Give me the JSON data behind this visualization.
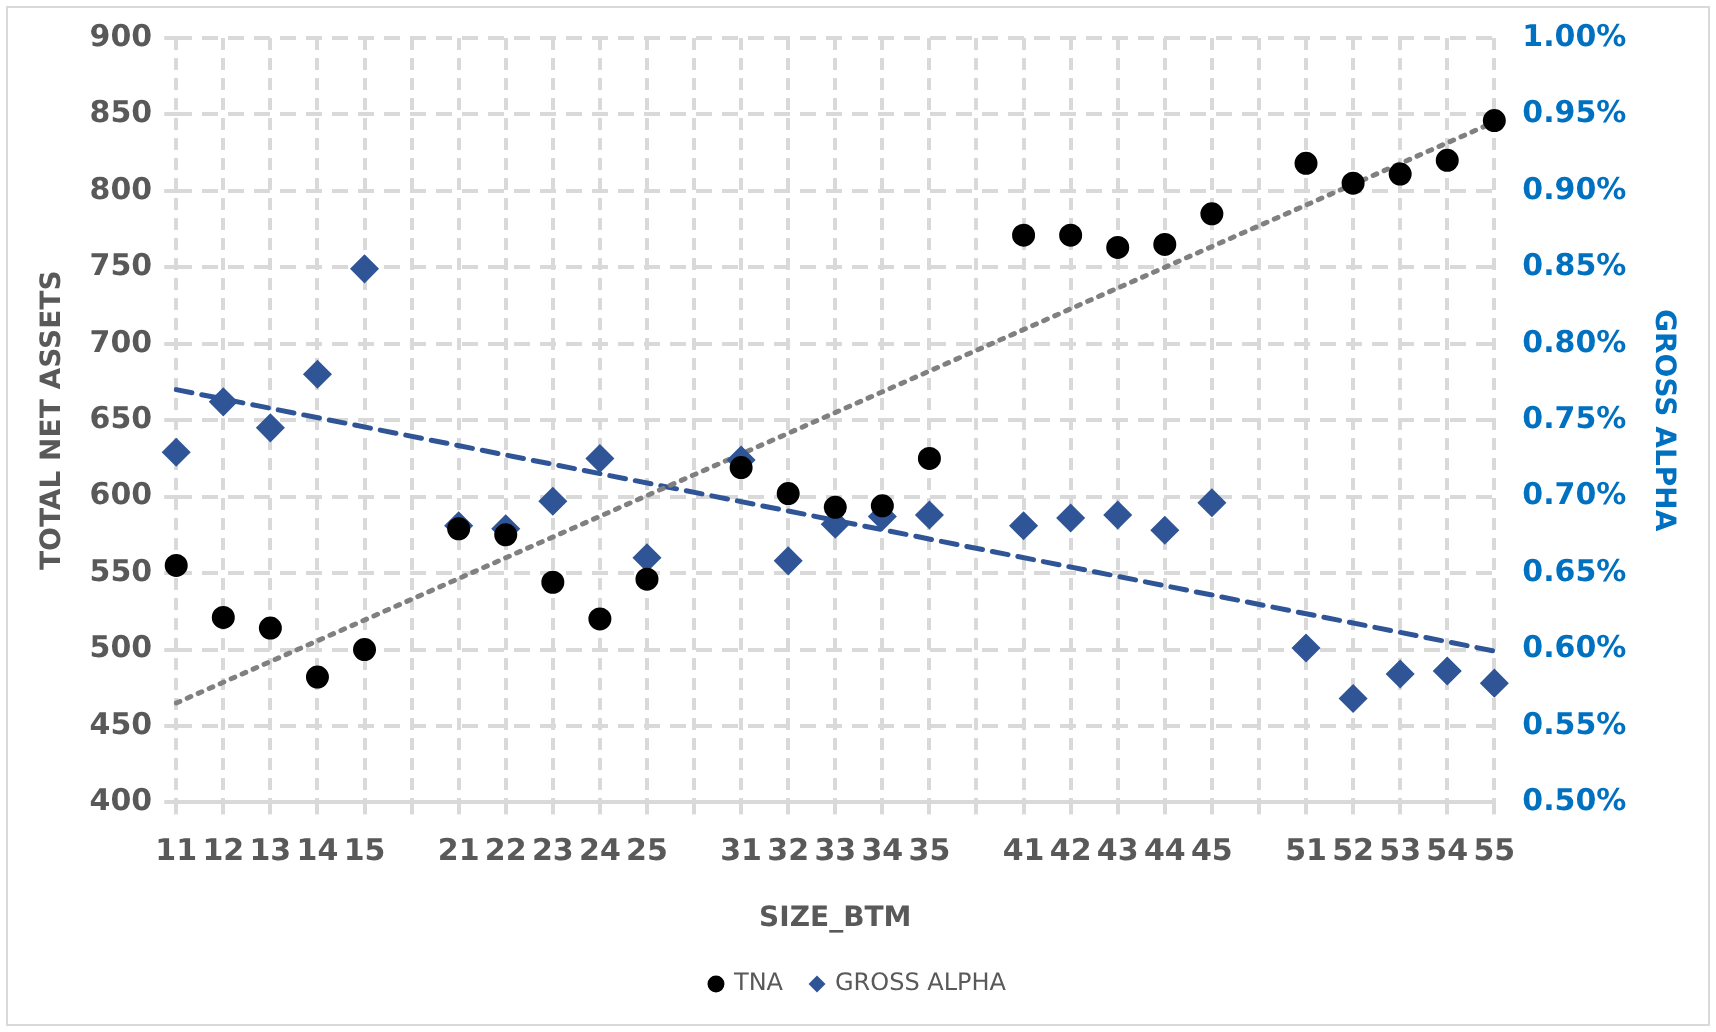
{
  "chart_data": {
    "type": "scatter",
    "xlabel": "SIZE_BTM",
    "ylabel": "TOTAL NET ASSETS",
    "y2label": "GROSS ALPHA",
    "categories": [
      "11",
      "12",
      "13",
      "14",
      "15",
      null,
      "21",
      "22",
      "23",
      "24",
      "25",
      null,
      "31",
      "32",
      "33",
      "34",
      "35",
      null,
      "41",
      "42",
      "43",
      "44",
      "45",
      null,
      "51",
      "52",
      "53",
      "54",
      "55"
    ],
    "series": [
      {
        "name": "TNA",
        "marker": "circle",
        "color": "#000000",
        "values": [
          555,
          521,
          514,
          482,
          500,
          null,
          579,
          575,
          544,
          520,
          546,
          null,
          619,
          602,
          593,
          594,
          625,
          null,
          771,
          771,
          763,
          765,
          785,
          null,
          818,
          805,
          811,
          820,
          846
        ]
      },
      {
        "name": "GROSS ALPHA",
        "marker": "diamond",
        "color": "#2f5597",
        "axis": "y2",
        "values": [
          0.729,
          0.762,
          0.745,
          0.78,
          0.849,
          null,
          0.681,
          0.679,
          0.697,
          0.725,
          0.66,
          null,
          0.724,
          0.658,
          0.682,
          0.687,
          0.688,
          null,
          0.681,
          0.686,
          0.688,
          0.678,
          0.696,
          null,
          0.601,
          0.568,
          0.584,
          0.586,
          0.578
        ]
      },
      {
        "type": "line",
        "line_style": "dotted",
        "marker": "none",
        "color": "#808080",
        "x": [
          "11",
          "55"
        ],
        "values": [
          465,
          845
        ]
      },
      {
        "type": "line",
        "line_style": "dashed",
        "marker": "none",
        "color": "#2f5597",
        "axis": "y2",
        "x": [
          "11",
          "55"
        ],
        "values": [
          0.77,
          0.599
        ]
      }
    ],
    "ylim": [
      400,
      900
    ],
    "yticks": [
      400,
      450,
      500,
      550,
      600,
      650,
      700,
      750,
      800,
      850,
      900
    ],
    "y2lim": [
      0.5,
      1.0
    ],
    "y2ticks": [
      {
        "value": 0.5,
        "label": "0.50%"
      },
      {
        "value": 0.55,
        "label": "0.55%"
      },
      {
        "value": 0.6,
        "label": "0.60%"
      },
      {
        "value": 0.65,
        "label": "0.65%"
      },
      {
        "value": 0.7,
        "label": "0.70%"
      },
      {
        "value": 0.75,
        "label": "0.75%"
      },
      {
        "value": 0.8,
        "label": "0.80%"
      },
      {
        "value": 0.85,
        "label": "0.85%"
      },
      {
        "value": 0.9,
        "label": "0.90%"
      },
      {
        "value": 0.95,
        "label": "0.95%"
      },
      {
        "value": 1.0,
        "label": "1.00%"
      }
    ],
    "grid": true,
    "legend": "bottom"
  }
}
